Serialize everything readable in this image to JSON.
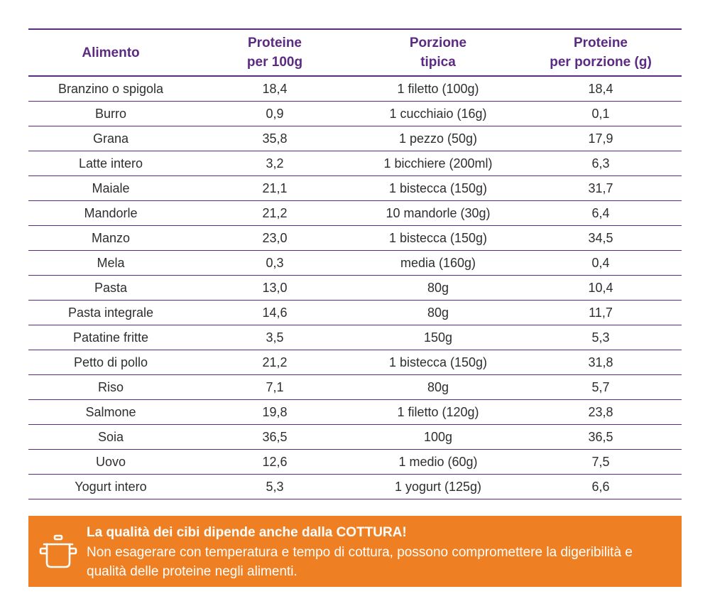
{
  "table": {
    "headers": [
      [
        "Alimento"
      ],
      [
        "Proteine",
        "per 100g"
      ],
      [
        "Porzione",
        "tipica"
      ],
      [
        "Proteine",
        "per porzione (g)"
      ]
    ],
    "rows": [
      [
        "Branzino o spigola",
        "18,4",
        "1 filetto (100g)",
        "18,4"
      ],
      [
        "Burro",
        "0,9",
        "1 cucchiaio (16g)",
        "0,1"
      ],
      [
        "Grana",
        "35,8",
        "1 pezzo (50g)",
        "17,9"
      ],
      [
        "Latte intero",
        "3,2",
        "1 bicchiere (200ml)",
        "6,3"
      ],
      [
        "Maiale",
        "21,1",
        "1 bistecca (150g)",
        "31,7"
      ],
      [
        "Mandorle",
        "21,2",
        "10 mandorle (30g)",
        "6,4"
      ],
      [
        "Manzo",
        "23,0",
        "1 bistecca (150g)",
        "34,5"
      ],
      [
        "Mela",
        "0,3",
        "media (160g)",
        "0,4"
      ],
      [
        "Pasta",
        "13,0",
        "80g",
        "10,4"
      ],
      [
        "Pasta integrale",
        "14,6",
        "80g",
        "11,7"
      ],
      [
        "Patatine fritte",
        "3,5",
        "150g",
        "5,3"
      ],
      [
        "Petto di pollo",
        "21,2",
        "1 bistecca (150g)",
        "31,8"
      ],
      [
        "Riso",
        "7,1",
        "80g",
        "5,7"
      ],
      [
        "Salmone",
        "19,8",
        "1 filetto (120g)",
        "23,8"
      ],
      [
        "Soia",
        "36,5",
        "100g",
        "36,5"
      ],
      [
        "Uovo",
        "12,6",
        "1 medio (60g)",
        "7,5"
      ],
      [
        "Yogurt intero",
        "5,3",
        "1 yogurt (125g)",
        "6,6"
      ]
    ]
  },
  "note": {
    "icon": "cooking-pot-icon",
    "title": "La qualità dei cibi dipende anche dalla COTTURA!",
    "body": "Non esagerare con temperatura e tempo di cottura, possono compromettere la digeribilità e qualità delle proteine negli alimenti."
  },
  "colors": {
    "header_text": "#5b2a82",
    "rule": "#5b2a82",
    "note_background": "#ee7f22",
    "note_text": "#ffffff"
  }
}
